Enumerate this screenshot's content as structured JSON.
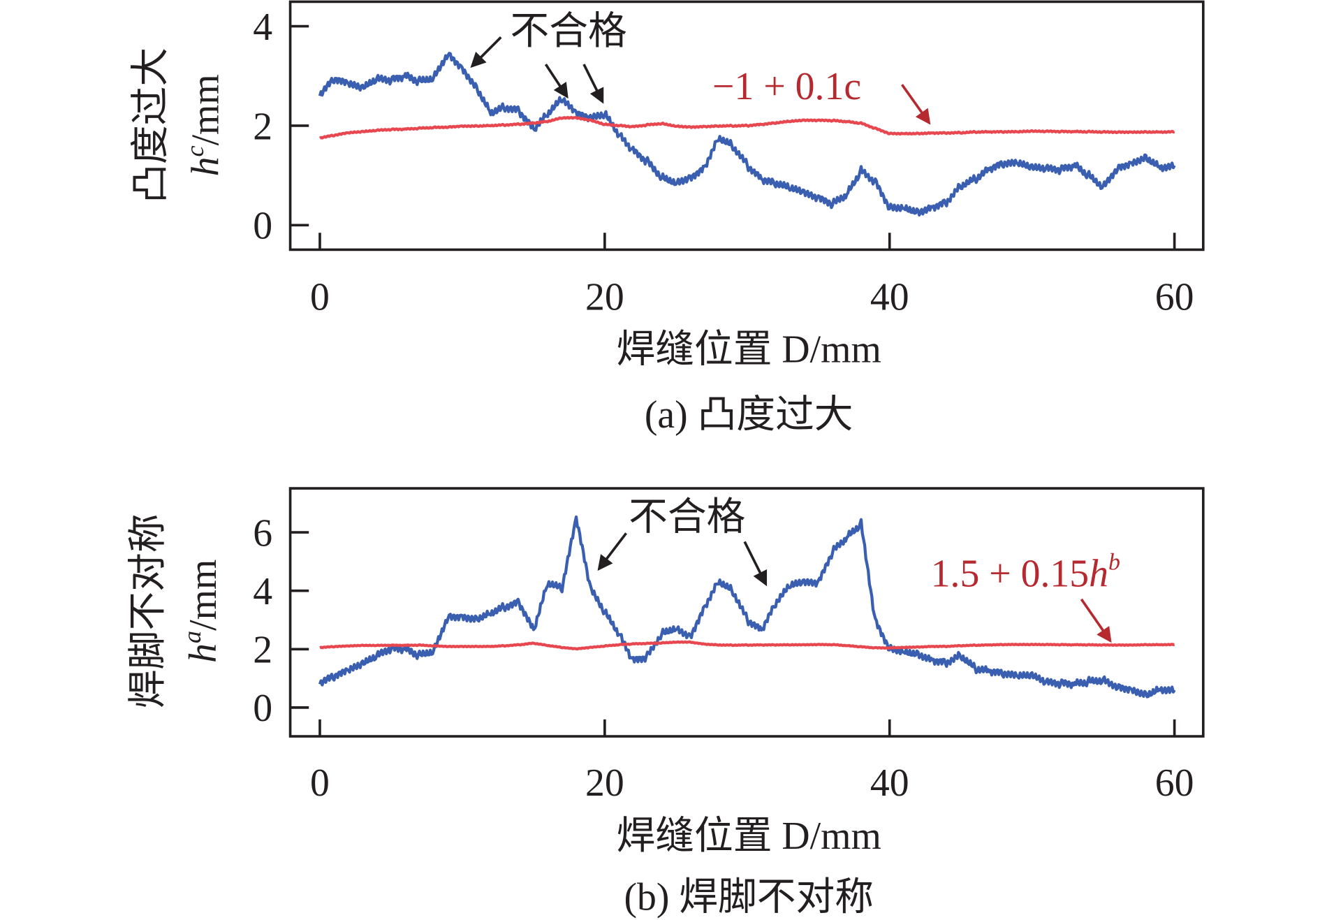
{
  "chart_data": [
    {
      "type": "line",
      "panel": "a",
      "caption": "(a) 凸度过大",
      "xlabel": "焊缝位置 D/mm",
      "ylabel_cn": "凸度过大",
      "ylabel_sym": "h",
      "ylabel_sup": "c",
      "ylabel_unit": "/mm",
      "xlim": [
        -2,
        62
      ],
      "ylim": [
        -0.5,
        4.5
      ],
      "xticks": [
        0,
        20,
        40,
        60
      ],
      "yticks": [
        0,
        2,
        4
      ],
      "x": [
        0,
        1,
        2,
        3,
        4,
        5,
        6,
        7,
        8,
        9,
        10,
        11,
        12,
        13,
        14,
        15,
        16,
        17,
        18,
        19,
        20,
        21,
        22,
        23,
        24,
        25,
        26,
        27,
        28,
        29,
        30,
        31,
        32,
        33,
        34,
        35,
        36,
        37,
        38,
        39,
        40,
        41,
        42,
        43,
        44,
        45,
        46,
        47,
        48,
        49,
        50,
        51,
        52,
        53,
        54,
        55,
        56,
        57,
        58,
        59,
        60
      ],
      "series": [
        {
          "name": "h^c",
          "color": "#3a5fb0",
          "values": [
            2.6,
            2.9,
            2.8,
            2.7,
            2.9,
            2.9,
            3.0,
            2.9,
            3.0,
            3.5,
            3.2,
            2.8,
            2.3,
            2.4,
            2.3,
            1.9,
            2.2,
            2.5,
            2.2,
            2.1,
            2.2,
            1.8,
            1.5,
            1.3,
            1.0,
            0.9,
            1.0,
            1.2,
            1.8,
            1.6,
            1.2,
            0.9,
            0.8,
            0.7,
            0.6,
            0.5,
            0.4,
            0.6,
            1.1,
            0.9,
            0.4,
            0.4,
            0.3,
            0.4,
            0.5,
            0.8,
            0.9,
            1.1,
            1.2,
            1.2,
            1.1,
            1.1,
            1.1,
            1.2,
            1.0,
            0.8,
            1.2,
            1.3,
            1.4,
            1.2,
            1.2
          ]
        },
        {
          "name": "-1 + 0.1c",
          "color": "#e8474f",
          "values": [
            1.75,
            1.8,
            1.85,
            1.87,
            1.9,
            1.92,
            1.93,
            1.95,
            1.97,
            1.98,
            2.0,
            2.0,
            2.01,
            2.02,
            2.03,
            2.05,
            2.08,
            2.15,
            2.15,
            2.1,
            2.02,
            2.0,
            1.98,
            2.02,
            2.05,
            2.0,
            1.98,
            1.99,
            2.0,
            2.0,
            2.0,
            2.02,
            2.05,
            2.08,
            2.1,
            2.1,
            2.1,
            2.08,
            2.05,
            1.95,
            1.85,
            1.85,
            1.85,
            1.86,
            1.86,
            1.86,
            1.87,
            1.87,
            1.87,
            1.87,
            1.88,
            1.88,
            1.88,
            1.88,
            1.88,
            1.88,
            1.88,
            1.88,
            1.88,
            1.88,
            1.88
          ]
        }
      ],
      "annotations": {
        "fail": "不合格",
        "threshold": "−1 + 0.1c"
      }
    },
    {
      "type": "line",
      "panel": "b",
      "caption": "(b) 焊脚不对称",
      "xlabel": "焊缝位置 D/mm",
      "ylabel_cn": "焊脚不对称",
      "ylabel_sym": "h",
      "ylabel_sup": "a",
      "ylabel_unit": "/mm",
      "xlim": [
        -2,
        62
      ],
      "ylim": [
        -1,
        7.5
      ],
      "xticks": [
        0,
        20,
        40,
        60
      ],
      "yticks": [
        0,
        2,
        4,
        6
      ],
      "x": [
        0,
        1,
        2,
        3,
        4,
        5,
        6,
        7,
        8,
        9,
        10,
        11,
        12,
        13,
        14,
        15,
        16,
        17,
        18,
        19,
        20,
        21,
        22,
        23,
        24,
        25,
        26,
        27,
        28,
        29,
        30,
        31,
        32,
        33,
        34,
        35,
        36,
        37,
        38,
        39,
        40,
        41,
        42,
        43,
        44,
        45,
        46,
        47,
        48,
        49,
        50,
        51,
        52,
        53,
        54,
        55,
        56,
        57,
        58,
        59,
        60
      ],
      "series": [
        {
          "name": "h^a",
          "color": "#3a5fb0",
          "values": [
            0.8,
            1.0,
            1.2,
            1.4,
            1.7,
            2.0,
            2.0,
            1.8,
            2.0,
            3.2,
            3.2,
            3.1,
            3.3,
            3.5,
            3.6,
            2.6,
            4.2,
            4.0,
            6.4,
            4.0,
            3.2,
            2.5,
            1.6,
            1.8,
            2.6,
            2.8,
            2.5,
            3.5,
            4.4,
            4.0,
            3.0,
            2.6,
            3.5,
            4.1,
            4.2,
            4.2,
            5.3,
            5.8,
            6.3,
            3.0,
            2.1,
            2.0,
            1.9,
            1.7,
            1.6,
            1.8,
            1.3,
            1.2,
            1.1,
            1.0,
            1.0,
            0.8,
            0.8,
            0.8,
            0.9,
            1.0,
            0.8,
            0.7,
            0.5,
            0.7,
            0.6
          ]
        },
        {
          "name": "1.5 + 0.15h^b",
          "color": "#e8474f",
          "values": [
            2.05,
            2.08,
            2.1,
            2.12,
            2.12,
            2.13,
            2.13,
            2.14,
            2.12,
            2.1,
            2.1,
            2.1,
            2.1,
            2.12,
            2.15,
            2.2,
            2.12,
            2.05,
            2.0,
            2.05,
            2.1,
            2.15,
            2.18,
            2.2,
            2.22,
            2.25,
            2.25,
            2.18,
            2.15,
            2.14,
            2.14,
            2.14,
            2.14,
            2.14,
            2.14,
            2.15,
            2.15,
            2.12,
            2.08,
            2.05,
            2.05,
            2.07,
            2.08,
            2.1,
            2.1,
            2.12,
            2.13,
            2.14,
            2.15,
            2.15,
            2.15,
            2.15,
            2.15,
            2.15,
            2.15,
            2.15,
            2.15,
            2.15,
            2.16,
            2.16,
            2.16
          ]
        }
      ],
      "annotations": {
        "fail": "不合格",
        "threshold_prefix": "1.5 + 0.15",
        "threshold_sym": "h",
        "threshold_sup": "b"
      }
    }
  ]
}
